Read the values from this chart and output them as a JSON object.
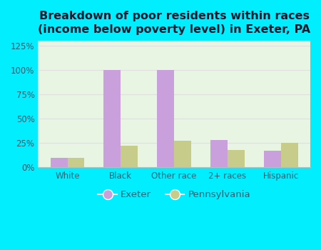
{
  "title": "Breakdown of poor residents within races\n(income below poverty level) in Exeter, PA",
  "categories": [
    "White",
    "Black",
    "Other race",
    "2+ races",
    "Hispanic"
  ],
  "exeter_values": [
    10,
    100,
    100,
    28,
    17
  ],
  "pennsylvania_values": [
    10,
    22,
    27,
    18,
    25
  ],
  "exeter_color": "#c9a0dc",
  "pennsylvania_color": "#c8cc8a",
  "bg_color": "#00eeff",
  "plot_bg_top": "#f5f5f0",
  "plot_bg_bottom": "#deecd8",
  "ylim": [
    0,
    130
  ],
  "yticks": [
    0,
    25,
    50,
    75,
    100,
    125
  ],
  "ytick_labels": [
    "0%",
    "25%",
    "50%",
    "75%",
    "100%",
    "125%"
  ],
  "bar_width": 0.32,
  "title_fontsize": 11.5,
  "legend_labels": [
    "Exeter",
    "Pennsylvania"
  ],
  "text_color": "#2a6070",
  "grid_color": "#e0e0e0"
}
